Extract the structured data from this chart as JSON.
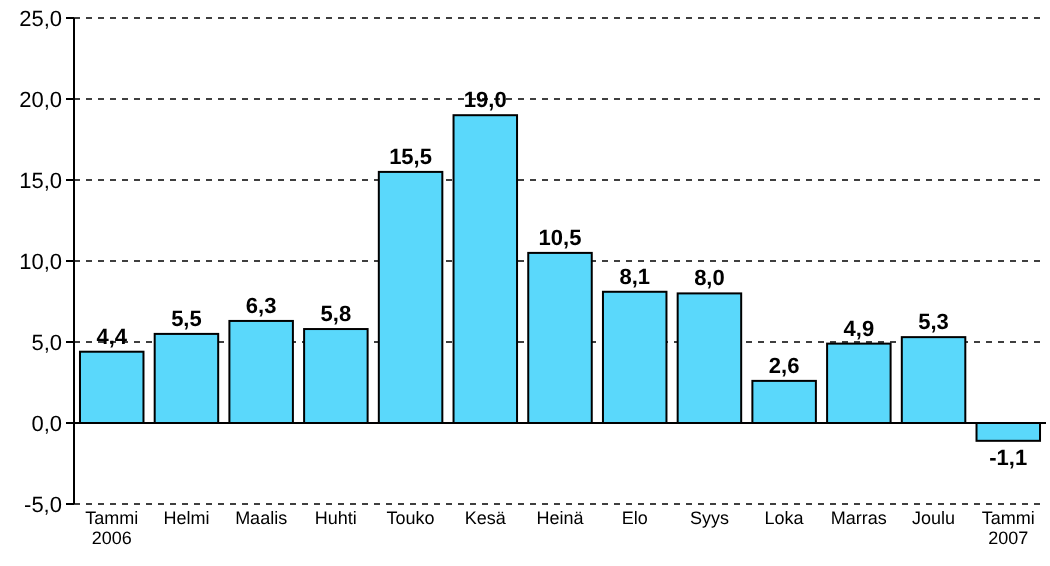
{
  "chart_data": {
    "type": "bar",
    "categories": [
      "Tammi\n2006",
      "Helmi",
      "Maalis",
      "Huhti",
      "Touko",
      "Kesä",
      "Heinä",
      "Elo",
      "Syys",
      "Loka",
      "Marras",
      "Joulu",
      "Tammi\n2007"
    ],
    "values": [
      4.4,
      5.5,
      6.3,
      5.8,
      15.5,
      19.0,
      10.5,
      8.1,
      8.0,
      2.6,
      4.9,
      5.3,
      -1.1
    ],
    "value_labels": [
      "4,4",
      "5,5",
      "6,3",
      "5,8",
      "15,5",
      "19,0",
      "10,5",
      "8,1",
      "8,0",
      "2,6",
      "4,9",
      "5,3",
      "-1,1"
    ],
    "color": "#5ad8fb",
    "ylim": [
      -5,
      25
    ],
    "yticks": [
      {
        "value": -5,
        "label": "-5,0"
      },
      {
        "value": 0,
        "label": "0,0"
      },
      {
        "value": 5,
        "label": "5,0"
      },
      {
        "value": 10,
        "label": "10,0"
      },
      {
        "value": 15,
        "label": "15,0"
      },
      {
        "value": 20,
        "label": "20,0"
      },
      {
        "value": 25,
        "label": "25,0"
      }
    ],
    "grid": "y"
  }
}
